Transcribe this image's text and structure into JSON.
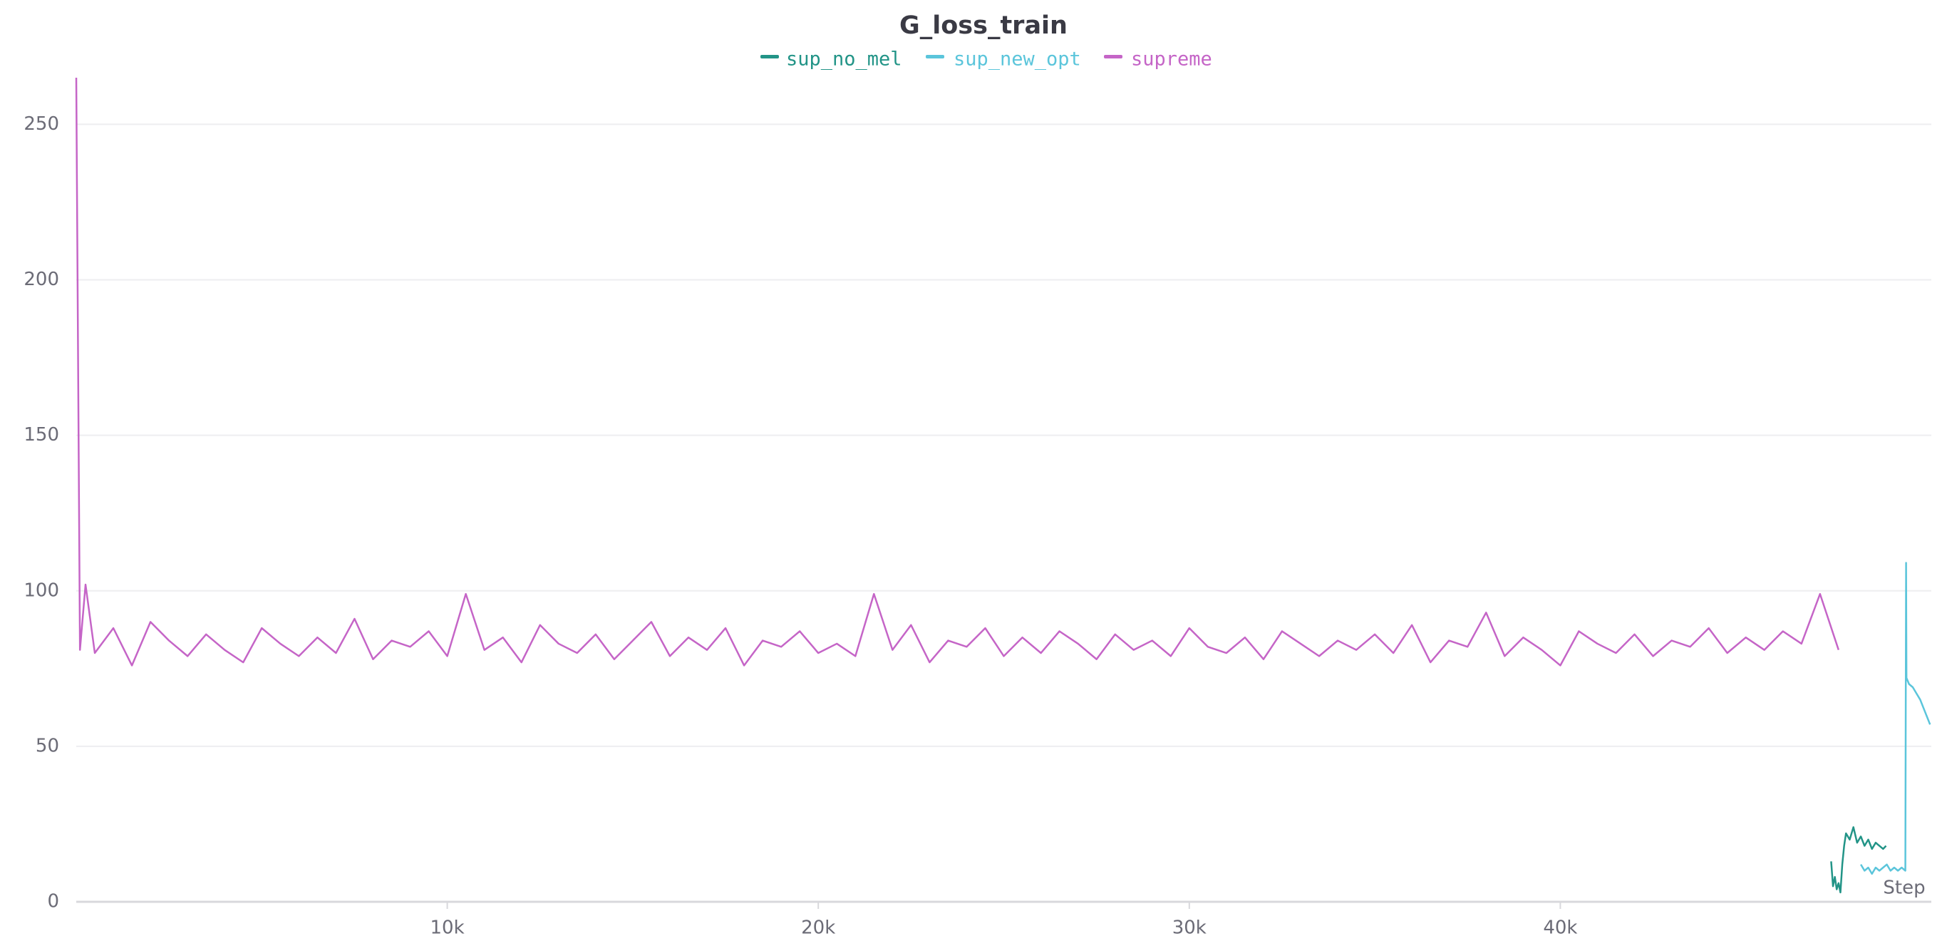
{
  "chart_data": {
    "type": "line",
    "title": "G_loss_train",
    "xlabel": "Step",
    "xlim": [
      0,
      50000
    ],
    "ylim": [
      0,
      265
    ],
    "xticks": [
      {
        "value": 10000,
        "label": "10k"
      },
      {
        "value": 20000,
        "label": "20k"
      },
      {
        "value": 30000,
        "label": "30k"
      },
      {
        "value": 40000,
        "label": "40k"
      }
    ],
    "yticks": [
      0,
      50,
      100,
      150,
      200,
      250
    ],
    "grid": true,
    "legend": "top",
    "series": [
      {
        "name": "sup_no_mel",
        "color": "#229487",
        "x": [
          47300,
          47350,
          47400,
          47450,
          47500,
          47550,
          47600,
          47650,
          47700,
          47800,
          47900,
          48000,
          48100,
          48200,
          48300,
          48400,
          48500,
          48600,
          48700,
          48780
        ],
        "values": [
          13,
          5,
          8,
          4,
          6,
          3,
          12,
          18,
          22,
          20,
          24,
          19,
          21,
          18,
          20,
          17,
          19,
          18,
          17,
          18
        ]
      },
      {
        "name": "sup_new_opt",
        "color": "#5bc5db",
        "x": [
          48100,
          48200,
          48300,
          48400,
          48500,
          48600,
          48700,
          48800,
          48900,
          49000,
          49100,
          49200,
          49300,
          49320,
          49330,
          49400,
          49500,
          49600,
          49700,
          49800,
          49900,
          49966
        ],
        "values": [
          12,
          10,
          11,
          9,
          11,
          10,
          11,
          12,
          10,
          11,
          10,
          11,
          10,
          109,
          72,
          70,
          69,
          67,
          65,
          62,
          59,
          57
        ]
      },
      {
        "name": "supreme",
        "color": "#c565c7",
        "x": [
          0,
          100,
          250,
          500,
          1000,
          1500,
          2000,
          2500,
          3000,
          3500,
          4000,
          4500,
          5000,
          5500,
          6000,
          6500,
          7000,
          7500,
          8000,
          8500,
          9000,
          9500,
          10000,
          10500,
          11000,
          11500,
          12000,
          12500,
          13000,
          13500,
          14000,
          14500,
          15000,
          15500,
          16000,
          16500,
          17000,
          17500,
          18000,
          18500,
          19000,
          19500,
          20000,
          20500,
          21000,
          21500,
          22000,
          22500,
          23000,
          23500,
          24000,
          24500,
          25000,
          25500,
          26000,
          26500,
          27000,
          27500,
          28000,
          28500,
          29000,
          29500,
          30000,
          30500,
          31000,
          31500,
          32000,
          32500,
          33000,
          33500,
          34000,
          34500,
          35000,
          35500,
          36000,
          36500,
          37000,
          37500,
          38000,
          38500,
          39000,
          39500,
          40000,
          40500,
          41000,
          41500,
          42000,
          42500,
          43000,
          43500,
          44000,
          44500,
          45000,
          45500,
          46000,
          46500,
          47000,
          47500
        ],
        "values": [
          265,
          81,
          102,
          80,
          88,
          76,
          90,
          84,
          79,
          86,
          81,
          77,
          88,
          83,
          79,
          85,
          80,
          91,
          78,
          84,
          82,
          87,
          79,
          99,
          81,
          85,
          77,
          89,
          83,
          80,
          86,
          78,
          84,
          90,
          79,
          85,
          81,
          88,
          76,
          84,
          82,
          87,
          80,
          83,
          79,
          99,
          81,
          89,
          77,
          84,
          82,
          88,
          79,
          85,
          80,
          87,
          83,
          78,
          86,
          81,
          84,
          79,
          88,
          82,
          80,
          85,
          78,
          87,
          83,
          79,
          84,
          81,
          86,
          80,
          89,
          77,
          84,
          82,
          93,
          79,
          85,
          81,
          76,
          87,
          83,
          80,
          86,
          79,
          84,
          82,
          88,
          80,
          85,
          81,
          87,
          83,
          99,
          81
        ]
      }
    ]
  }
}
